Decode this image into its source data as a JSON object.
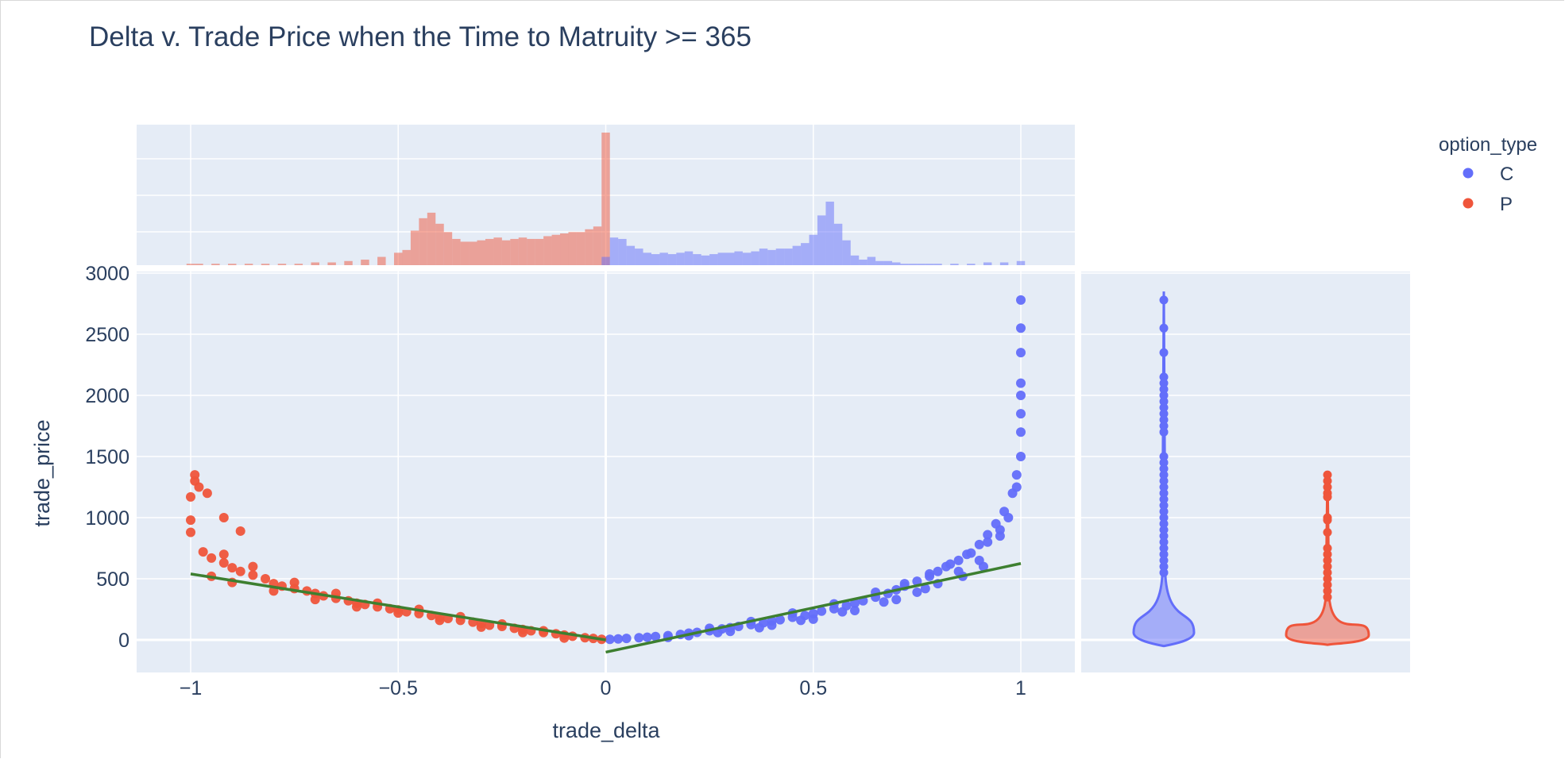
{
  "chart_data": {
    "type": "scatter",
    "title": "Delta v. Trade Price when the Time to Matruity >= 365",
    "xlabel": "trade_delta",
    "ylabel": "trade_price",
    "xlim": [
      -1.1,
      1.13
    ],
    "ylim": [
      -270,
      3000
    ],
    "x_ticks": [
      -1,
      -0.5,
      0,
      0.5,
      1
    ],
    "x_tick_labels": [
      "−1",
      "−0.5",
      "0",
      "0.5",
      "1"
    ],
    "y_ticks": [
      0,
      500,
      1000,
      1500,
      2000,
      2500,
      3000
    ],
    "y_tick_labels": [
      "0",
      "500",
      "1000",
      "1500",
      "2000",
      "2500",
      "3000"
    ],
    "grid": true,
    "legend": {
      "title": "option_type",
      "placement": "top-right",
      "items": [
        {
          "label": "C",
          "color": "#636efa"
        },
        {
          "label": "P",
          "color": "#EF553B"
        }
      ]
    },
    "series": [
      {
        "name": "C",
        "color": "#636efa",
        "points": [
          [
            0.01,
            5
          ],
          [
            0.03,
            8
          ],
          [
            0.05,
            12
          ],
          [
            0.08,
            18
          ],
          [
            0.1,
            22
          ],
          [
            0.12,
            28
          ],
          [
            0.15,
            35
          ],
          [
            0.18,
            45
          ],
          [
            0.2,
            55
          ],
          [
            0.22,
            62
          ],
          [
            0.25,
            75
          ],
          [
            0.28,
            90
          ],
          [
            0.3,
            100
          ],
          [
            0.32,
            110
          ],
          [
            0.35,
            125
          ],
          [
            0.38,
            140
          ],
          [
            0.4,
            155
          ],
          [
            0.42,
            165
          ],
          [
            0.45,
            185
          ],
          [
            0.48,
            200
          ],
          [
            0.5,
            215
          ],
          [
            0.52,
            235
          ],
          [
            0.55,
            255
          ],
          [
            0.58,
            280
          ],
          [
            0.6,
            300
          ],
          [
            0.62,
            320
          ],
          [
            0.65,
            350
          ],
          [
            0.68,
            380
          ],
          [
            0.7,
            410
          ],
          [
            0.72,
            440
          ],
          [
            0.75,
            480
          ],
          [
            0.78,
            520
          ],
          [
            0.8,
            560
          ],
          [
            0.82,
            600
          ],
          [
            0.85,
            650
          ],
          [
            0.87,
            700
          ],
          [
            0.9,
            780
          ],
          [
            0.92,
            860
          ],
          [
            0.94,
            950
          ],
          [
            0.96,
            1050
          ],
          [
            0.98,
            1200
          ],
          [
            0.99,
            1350
          ],
          [
            1.0,
            1500
          ],
          [
            1.0,
            1700
          ],
          [
            1.0,
            1850
          ],
          [
            1.0,
            2000
          ],
          [
            1.0,
            2100
          ],
          [
            1.0,
            2350
          ],
          [
            1.0,
            2550
          ],
          [
            1.0,
            2780
          ],
          [
            0.2,
            35
          ],
          [
            0.3,
            70
          ],
          [
            0.4,
            120
          ],
          [
            0.5,
            170
          ],
          [
            0.6,
            240
          ],
          [
            0.7,
            330
          ],
          [
            0.75,
            390
          ],
          [
            0.8,
            460
          ],
          [
            0.85,
            560
          ],
          [
            0.9,
            650
          ],
          [
            0.95,
            850
          ],
          [
            0.97,
            1000
          ],
          [
            0.99,
            1250
          ],
          [
            0.25,
            95
          ],
          [
            0.35,
            150
          ],
          [
            0.45,
            220
          ],
          [
            0.55,
            295
          ],
          [
            0.65,
            390
          ],
          [
            0.72,
            460
          ],
          [
            0.78,
            540
          ],
          [
            0.83,
            620
          ],
          [
            0.88,
            710
          ],
          [
            0.92,
            800
          ],
          [
            0.95,
            900
          ],
          [
            0.15,
            20
          ],
          [
            0.27,
            60
          ],
          [
            0.37,
            100
          ],
          [
            0.47,
            160
          ],
          [
            0.57,
            230
          ],
          [
            0.67,
            310
          ],
          [
            0.77,
            420
          ],
          [
            0.86,
            520
          ],
          [
            0.91,
            600
          ]
        ]
      },
      {
        "name": "P",
        "color": "#EF553B",
        "points": [
          [
            -0.01,
            5
          ],
          [
            -0.03,
            12
          ],
          [
            -0.05,
            18
          ],
          [
            -0.08,
            30
          ],
          [
            -0.1,
            40
          ],
          [
            -0.12,
            50
          ],
          [
            -0.15,
            60
          ],
          [
            -0.18,
            75
          ],
          [
            -0.2,
            85
          ],
          [
            -0.22,
            95
          ],
          [
            -0.25,
            110
          ],
          [
            -0.28,
            120
          ],
          [
            -0.3,
            135
          ],
          [
            -0.32,
            145
          ],
          [
            -0.35,
            160
          ],
          [
            -0.38,
            175
          ],
          [
            -0.4,
            185
          ],
          [
            -0.42,
            200
          ],
          [
            -0.45,
            215
          ],
          [
            -0.48,
            230
          ],
          [
            -0.5,
            245
          ],
          [
            -0.52,
            255
          ],
          [
            -0.55,
            270
          ],
          [
            -0.58,
            290
          ],
          [
            -0.6,
            300
          ],
          [
            -0.62,
            320
          ],
          [
            -0.65,
            340
          ],
          [
            -0.68,
            360
          ],
          [
            -0.7,
            380
          ],
          [
            -0.72,
            400
          ],
          [
            -0.75,
            420
          ],
          [
            -0.78,
            440
          ],
          [
            -0.8,
            460
          ],
          [
            -0.82,
            500
          ],
          [
            -0.85,
            530
          ],
          [
            -0.88,
            560
          ],
          [
            -0.9,
            590
          ],
          [
            -0.92,
            630
          ],
          [
            -0.95,
            670
          ],
          [
            -0.97,
            720
          ],
          [
            -0.1,
            15
          ],
          [
            -0.2,
            60
          ],
          [
            -0.3,
            105
          ],
          [
            -0.4,
            160
          ],
          [
            -0.5,
            220
          ],
          [
            -0.6,
            270
          ],
          [
            -0.7,
            330
          ],
          [
            -0.8,
            400
          ],
          [
            -0.9,
            470
          ],
          [
            -0.95,
            520
          ],
          [
            -0.15,
            75
          ],
          [
            -0.25,
            130
          ],
          [
            -0.35,
            190
          ],
          [
            -0.45,
            250
          ],
          [
            -0.55,
            300
          ],
          [
            -0.65,
            380
          ],
          [
            -0.75,
            470
          ],
          [
            -0.85,
            600
          ],
          [
            -0.92,
            700
          ],
          [
            -1.0,
            880
          ],
          [
            -1.0,
            980
          ],
          [
            -1.0,
            1170
          ],
          [
            -0.99,
            1300
          ],
          [
            -0.99,
            1350
          ],
          [
            -0.98,
            1250
          ],
          [
            -0.96,
            1200
          ],
          [
            -0.92,
            1000
          ],
          [
            -0.88,
            890
          ]
        ]
      }
    ],
    "trendlines": [
      {
        "series": "C",
        "color": "#3d7f30",
        "x": [
          0.0,
          1.0
        ],
        "y": [
          -100,
          625
        ]
      },
      {
        "series": "P",
        "color": "#3d7f30",
        "x": [
          -1.0,
          0.0
        ],
        "y": [
          540,
          0
        ]
      }
    ],
    "marginal_x": {
      "type": "histogram",
      "series": [
        {
          "name": "P",
          "color": "#EF553B",
          "bins": [
            [
              -1.0,
              1
            ],
            [
              -0.98,
              1
            ],
            [
              -0.94,
              1
            ],
            [
              -0.9,
              1
            ],
            [
              -0.86,
              1
            ],
            [
              -0.82,
              1
            ],
            [
              -0.78,
              1
            ],
            [
              -0.74,
              1
            ],
            [
              -0.7,
              2
            ],
            [
              -0.66,
              2
            ],
            [
              -0.62,
              3
            ],
            [
              -0.58,
              4
            ],
            [
              -0.54,
              6
            ],
            [
              -0.5,
              9
            ],
            [
              -0.48,
              11
            ],
            [
              -0.46,
              25
            ],
            [
              -0.44,
              34
            ],
            [
              -0.42,
              38
            ],
            [
              -0.4,
              30
            ],
            [
              -0.38,
              24
            ],
            [
              -0.36,
              19
            ],
            [
              -0.34,
              17
            ],
            [
              -0.32,
              17
            ],
            [
              -0.3,
              18
            ],
            [
              -0.28,
              19
            ],
            [
              -0.26,
              20
            ],
            [
              -0.24,
              18
            ],
            [
              -0.22,
              19
            ],
            [
              -0.2,
              20
            ],
            [
              -0.18,
              19
            ],
            [
              -0.16,
              19
            ],
            [
              -0.14,
              21
            ],
            [
              -0.12,
              22
            ],
            [
              -0.1,
              23
            ],
            [
              -0.08,
              24
            ],
            [
              -0.06,
              24
            ],
            [
              -0.04,
              26
            ],
            [
              -0.02,
              28
            ],
            [
              0.0,
              96
            ]
          ]
        },
        {
          "name": "C",
          "color": "#636efa",
          "bins": [
            [
              0.0,
              6
            ],
            [
              0.02,
              20
            ],
            [
              0.04,
              19
            ],
            [
              0.06,
              14
            ],
            [
              0.08,
              12
            ],
            [
              0.1,
              9
            ],
            [
              0.12,
              8
            ],
            [
              0.14,
              9
            ],
            [
              0.16,
              8
            ],
            [
              0.18,
              9
            ],
            [
              0.2,
              10
            ],
            [
              0.22,
              8
            ],
            [
              0.24,
              7
            ],
            [
              0.26,
              8
            ],
            [
              0.28,
              9
            ],
            [
              0.3,
              9
            ],
            [
              0.32,
              10
            ],
            [
              0.34,
              9
            ],
            [
              0.36,
              10
            ],
            [
              0.38,
              12
            ],
            [
              0.4,
              11
            ],
            [
              0.42,
              12
            ],
            [
              0.44,
              12
            ],
            [
              0.46,
              14
            ],
            [
              0.48,
              16
            ],
            [
              0.5,
              22
            ],
            [
              0.52,
              36
            ],
            [
              0.54,
              46
            ],
            [
              0.56,
              30
            ],
            [
              0.58,
              18
            ],
            [
              0.6,
              7
            ],
            [
              0.62,
              4
            ],
            [
              0.64,
              6
            ],
            [
              0.66,
              3
            ],
            [
              0.68,
              3
            ],
            [
              0.7,
              2
            ],
            [
              0.72,
              1
            ],
            [
              0.74,
              1
            ],
            [
              0.76,
              1
            ],
            [
              0.78,
              1
            ],
            [
              0.8,
              1
            ],
            [
              0.84,
              1
            ],
            [
              0.88,
              1
            ],
            [
              0.92,
              2
            ],
            [
              0.96,
              2
            ],
            [
              1.0,
              3
            ]
          ]
        }
      ]
    },
    "marginal_y": {
      "type": "violin",
      "series": [
        {
          "name": "C",
          "color": "#636efa",
          "min": -50,
          "max": 2850,
          "outliers": [
            2780,
            2550,
            2350,
            2150,
            2100,
            2050,
            2000,
            1950,
            1900,
            1850,
            1800,
            1750,
            1700,
            1500,
            1450,
            1400,
            1350,
            1300,
            1250,
            1200,
            1150,
            1100,
            1050,
            1000,
            950,
            900,
            850,
            800,
            750,
            700,
            650,
            600,
            550
          ]
        },
        {
          "name": "P",
          "color": "#EF553B",
          "min": -40,
          "max": 1380,
          "outliers": [
            1350,
            1300,
            1250,
            1200,
            1170,
            1000,
            980,
            880,
            750,
            700,
            650,
            600,
            550,
            500,
            450,
            400,
            350
          ]
        }
      ]
    }
  }
}
